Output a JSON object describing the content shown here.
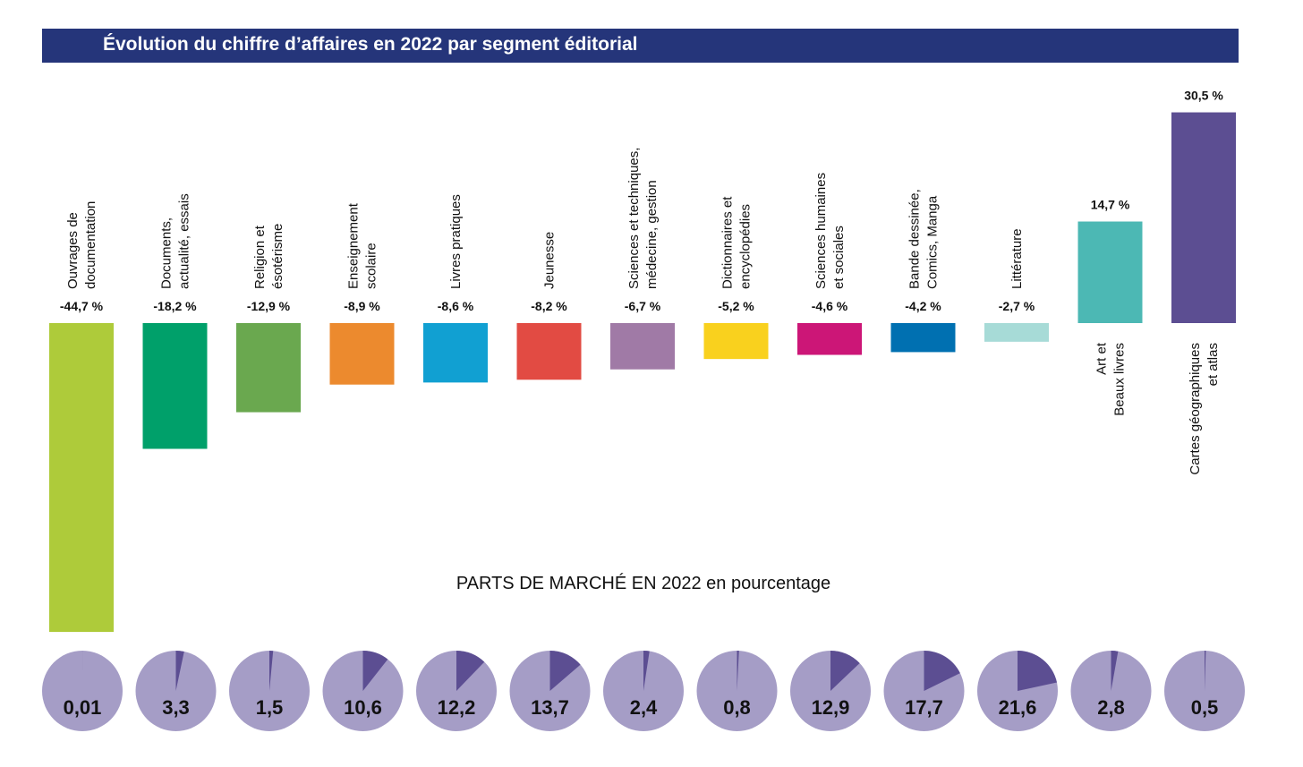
{
  "title": "Évolution du chiffre d’affaires en 2022 par segment éditorial",
  "subtitle": "PARTS DE MARCHÉ EN 2022 en pourcentage",
  "chart_data": [
    {
      "type": "bar",
      "title": "Évolution du chiffre d’affaires en 2022 par segment éditorial",
      "categories": [
        [
          "Ouvrages de",
          "documentation"
        ],
        [
          "Documents,",
          "actualité, essais"
        ],
        [
          "Religion et",
          "ésotérisme"
        ],
        [
          "Enseignement",
          "scolaire"
        ],
        [
          "Livres pratiques"
        ],
        [
          "Jeunesse"
        ],
        [
          "Sciences et techniques,",
          "médecine, gestion"
        ],
        [
          "Dictionnaires et",
          "encyclopédies"
        ],
        [
          "Sciences humaines",
          "et sociales"
        ],
        [
          "Bande dessinée,",
          "Comics, Manga"
        ],
        [
          "Littérature"
        ],
        [
          "Art et",
          "Beaux livres"
        ],
        [
          "Cartes géographiques",
          "et atlas"
        ]
      ],
      "values": [
        -44.7,
        -18.2,
        -12.9,
        -8.9,
        -8.6,
        -8.2,
        -6.7,
        -5.2,
        -4.6,
        -4.2,
        -2.7,
        14.7,
        30.5
      ],
      "value_labels": [
        "-44,7 %",
        "-18,2 %",
        "-12,9 %",
        "-8,9 %",
        "-8,6 %",
        "-8,2 %",
        "-6,7 %",
        "-5,2 %",
        "-4,6 %",
        "-4,2 %",
        "-2,7 %",
        "14,7 %",
        "30,5 %"
      ],
      "colors": [
        "#aecb3a",
        "#00a06a",
        "#6aa84f",
        "#ec8a2e",
        "#11a0d2",
        "#e24b43",
        "#a07aa6",
        "#f9d11e",
        "#cc1677",
        "#0070b1",
        "#a7dbd7",
        "#4cb8b4",
        "#5c4e92"
      ],
      "xlabel": "",
      "ylabel": "",
      "ylim": [
        -44.7,
        30.5
      ],
      "grid": false,
      "legend": "none"
    },
    {
      "type": "pie",
      "title": "PARTS DE MARCHÉ EN 2022 en pourcentage",
      "values": [
        0.01,
        3.3,
        1.5,
        10.6,
        12.2,
        13.7,
        2.4,
        0.8,
        12.9,
        17.7,
        21.6,
        2.8,
        0.5
      ],
      "value_labels": [
        "0,01",
        "3,3",
        "1,5",
        "10,6",
        "12,2",
        "13,7",
        "2,4",
        "0,8",
        "12,9",
        "17,7",
        "21,6",
        "2,8",
        "0,5"
      ],
      "colors": {
        "share": "#5c4e92",
        "rest": "#a59dc6"
      }
    }
  ]
}
